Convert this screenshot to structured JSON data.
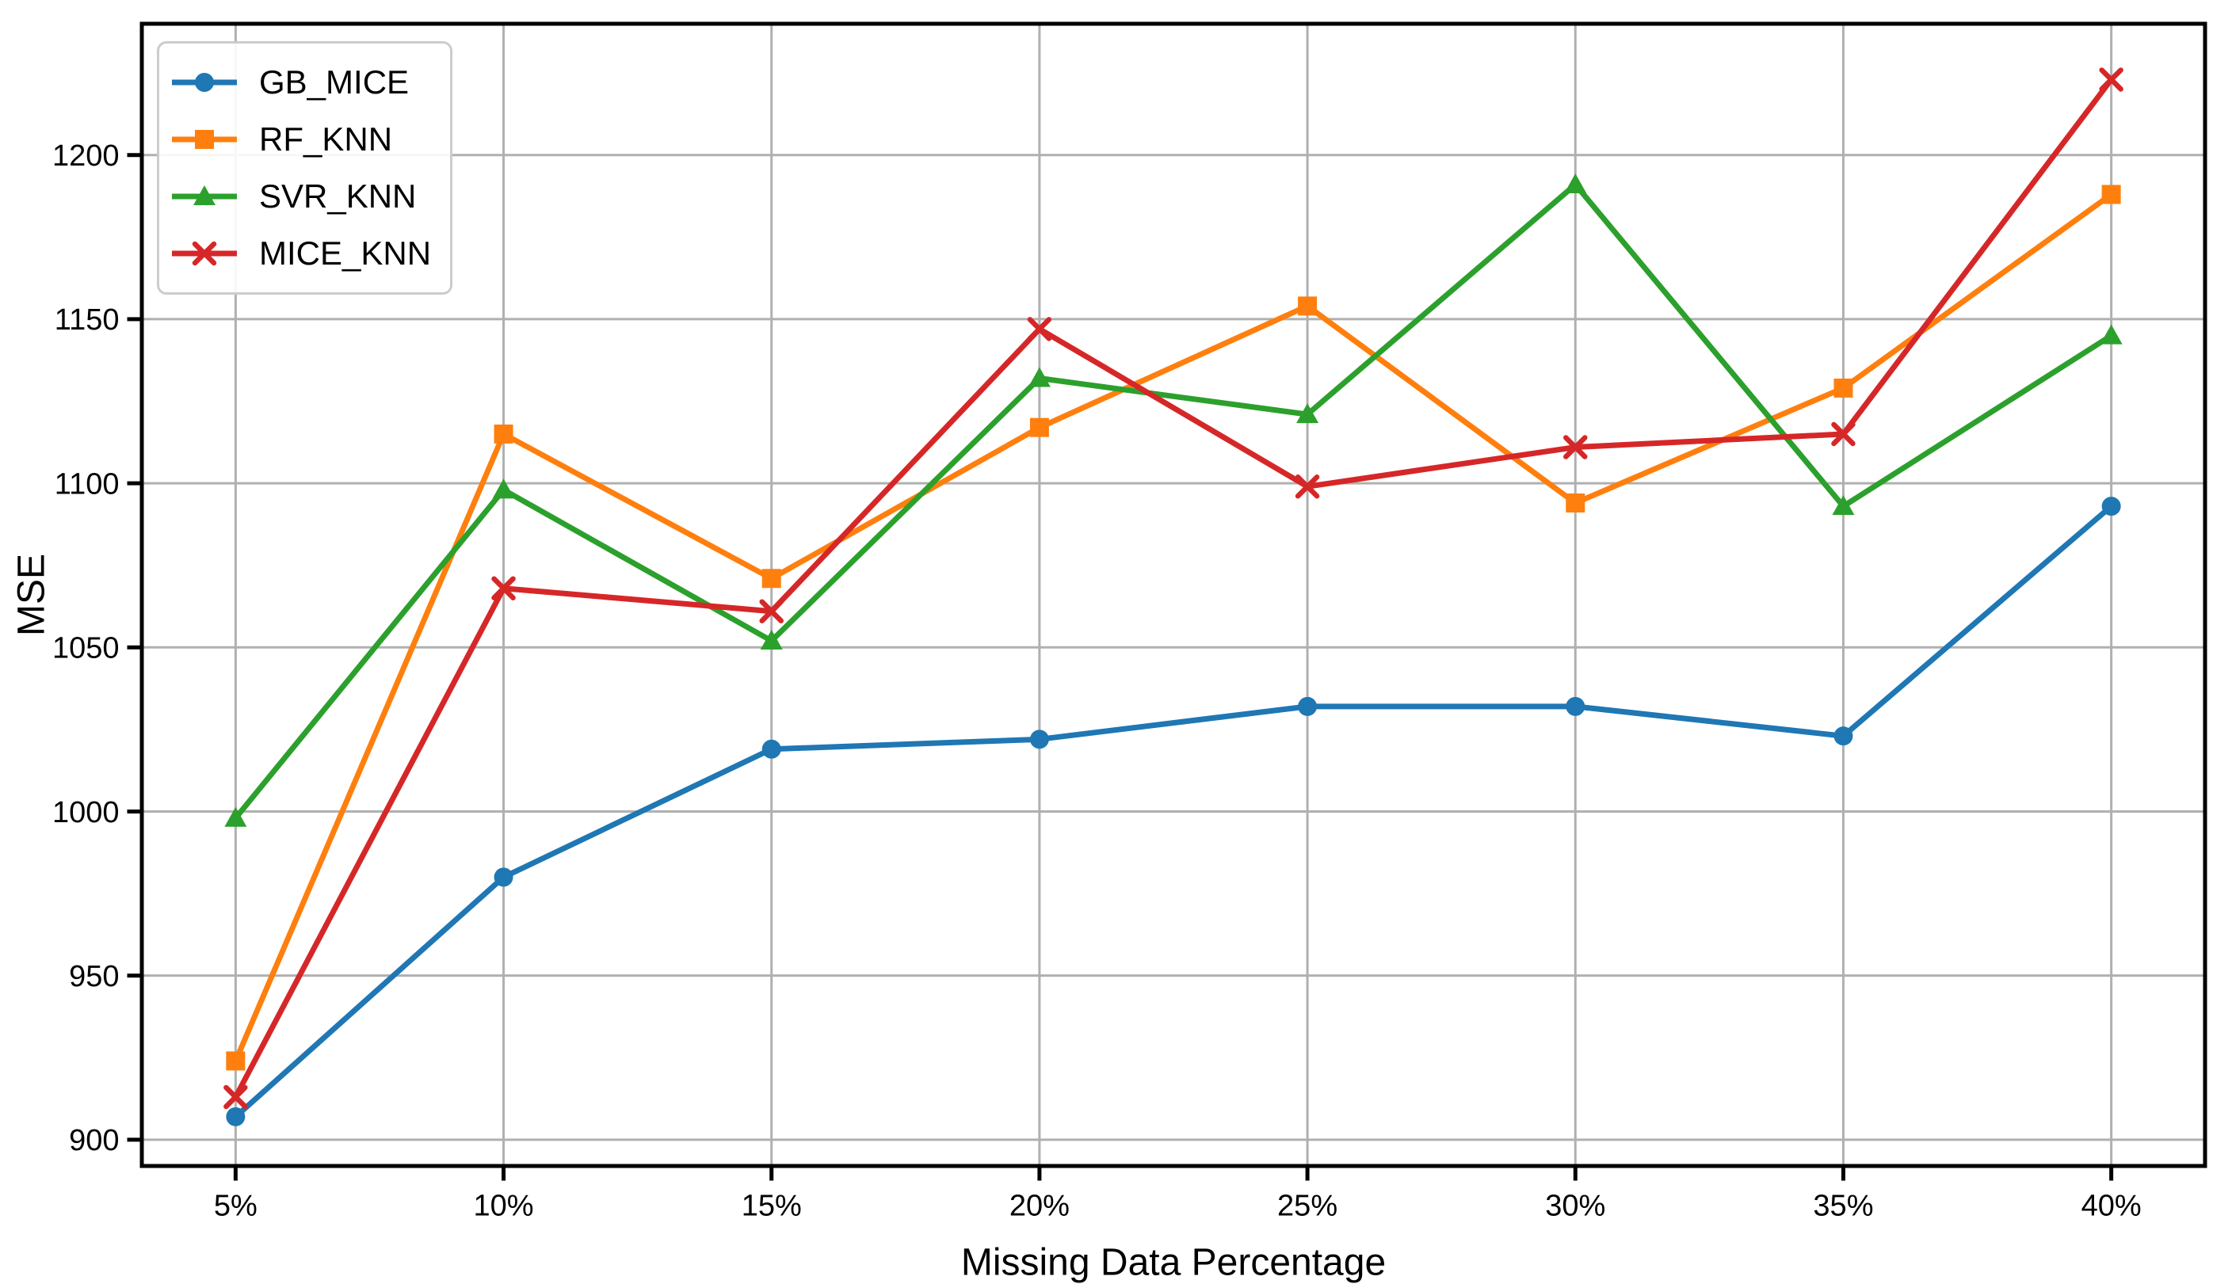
{
  "chart_data": {
    "type": "line",
    "title": "",
    "xlabel": "Missing Data Percentage",
    "ylabel": "MSE",
    "categories": [
      "5%",
      "10%",
      "15%",
      "20%",
      "25%",
      "30%",
      "35%",
      "40%"
    ],
    "series": [
      {
        "name": "GB_MICE",
        "color": "#1f77b4",
        "marker": "circle",
        "values": [
          907,
          980,
          1019,
          1022,
          1032,
          1032,
          1023,
          1093
        ]
      },
      {
        "name": "RF_KNN",
        "color": "#ff7f0e",
        "marker": "square",
        "values": [
          924,
          1115,
          1071,
          1117,
          1154,
          1094,
          1129,
          1188
        ]
      },
      {
        "name": "SVR_KNN",
        "color": "#2ca02c",
        "marker": "triangle",
        "values": [
          998,
          1098,
          1052,
          1132,
          1121,
          1191,
          1093,
          1145
        ]
      },
      {
        "name": "MICE_KNN",
        "color": "#d62728",
        "marker": "x",
        "values": [
          913,
          1068,
          1061,
          1147,
          1099,
          1111,
          1115,
          1223
        ]
      }
    ],
    "yticks": [
      900,
      950,
      1000,
      1050,
      1100,
      1150,
      1200
    ],
    "ylim": [
      892,
      1240
    ],
    "grid": true,
    "grid_color": "#b0b0b0",
    "axis_color": "#000000",
    "legend_position": "upper left"
  }
}
